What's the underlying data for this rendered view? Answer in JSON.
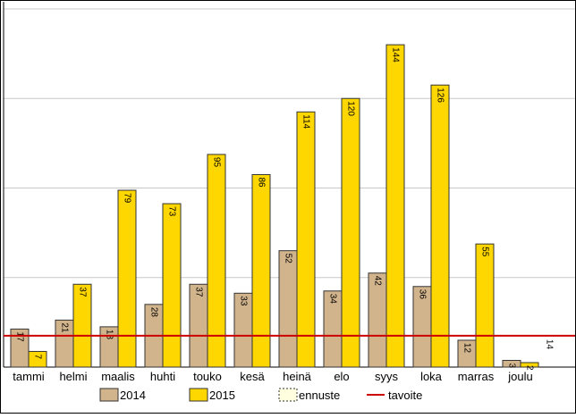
{
  "chart_data": {
    "type": "bar",
    "categories": [
      "tammi",
      "helmi",
      "maalis",
      "huhti",
      "touko",
      "kesä",
      "heinä",
      "elo",
      "syys",
      "loka",
      "marras",
      "joulu"
    ],
    "series": [
      {
        "name": "2014",
        "color": "#D2B48C",
        "values": [
          17,
          21,
          18,
          28,
          37,
          33,
          52,
          34,
          42,
          36,
          12,
          3
        ]
      },
      {
        "name": "2015",
        "color": "#FFD700",
        "values": [
          7,
          37,
          79,
          73,
          95,
          86,
          114,
          120,
          144,
          126,
          55,
          2
        ]
      },
      {
        "name": "ennuste",
        "color": "#FFFFE0",
        "values": [
          null,
          null,
          null,
          null,
          null,
          null,
          null,
          null,
          null,
          null,
          null,
          14
        ]
      }
    ],
    "target": {
      "name": "tavoite",
      "value": 14,
      "color": "#CC0000"
    },
    "ylim": [
      0,
      160
    ],
    "grid": true,
    "legend": "bottom",
    "title": "",
    "xlabel": "",
    "ylabel": ""
  }
}
